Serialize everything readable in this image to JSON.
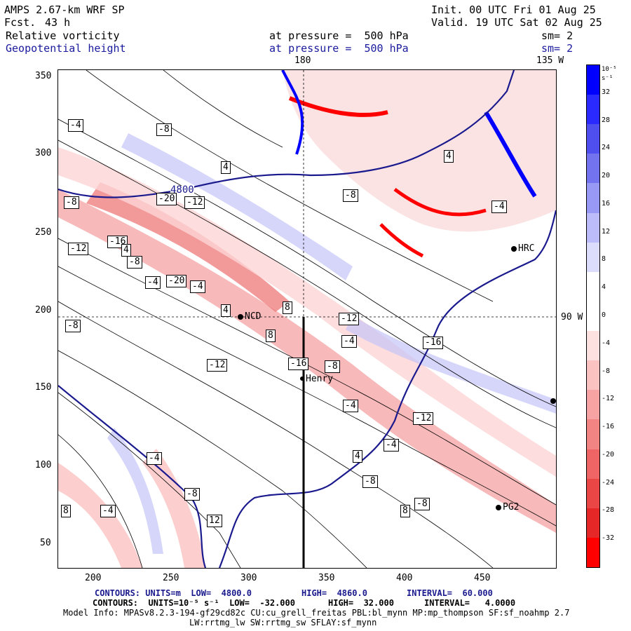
{
  "header": {
    "model": "AMPS 2.67-km WRF SP",
    "fcst_label": "Fcst.",
    "fcst_value": "43 h",
    "init": "Init. 00 UTC Fri 01 Aug 25",
    "valid": "Valid. 19 UTC Sat 02 Aug 25",
    "field1": "Relative vorticity",
    "field2": "Geopotential height",
    "level1": "at pressure =  500 hPa",
    "level2": "at pressure =  500 hPa",
    "sm1": "sm= 2",
    "sm2": "sm= 2"
  },
  "axes": {
    "x_ticks": [
      "200",
      "250",
      "300",
      "350",
      "400",
      "450"
    ],
    "y_ticks": [
      "350",
      "300",
      "250",
      "200",
      "150",
      "100",
      "50"
    ],
    "top_labels": [
      "180",
      "135 W"
    ],
    "right_label": "90 W"
  },
  "colorbar": {
    "unit": "10⁻⁵ s⁻¹",
    "ticks": [
      "32",
      "28",
      "24",
      "20",
      "16",
      "12",
      "8",
      "4",
      "0",
      "-4",
      "-8",
      "-12",
      "-16",
      "-20",
      "-24",
      "-28",
      "-32"
    ],
    "colors": [
      "#0000ff",
      "#2a2aff",
      "#4f4ff0",
      "#7373f0",
      "#9898f5",
      "#bcbcfa",
      "#dcdcfc",
      "#ffffff",
      "#ffffff",
      "#fde0e0",
      "#fbc2c2",
      "#f7a3a3",
      "#f38484",
      "#ef6565",
      "#ea4646",
      "#e52727",
      "#ff0000"
    ]
  },
  "stations": [
    "NCD",
    "Henry",
    "HRC",
    "PG2"
  ],
  "contour_labels": {
    "height": "4800",
    "vort": [
      "-4",
      "-8",
      "4",
      "-8",
      "4",
      "-4",
      "-8",
      "-20",
      "-12",
      "-16",
      "-12",
      "-8",
      "-20",
      "-4",
      "4",
      "8",
      "-16",
      "-12",
      "-8",
      "-4",
      "-12",
      "-16",
      "-12",
      "8",
      "-8",
      "4",
      "-4",
      "-4",
      "-8",
      "-4",
      "8",
      "12",
      "-8",
      "8",
      "-4",
      "-4",
      "-8",
      "4"
    ]
  },
  "footer": {
    "line1_a": "CONTOURS: UNITS=m  LOW=  4800.0",
    "line1_b": "HIGH=  4860.0",
    "line1_c": "INTERVAL=  60.000",
    "line2_a": "CONTOURS:  UNITS=10⁻⁵ s⁻¹  LOW=  -32.000",
    "line2_b": "HIGH=  32.000",
    "line2_c": "INTERVAL=   4.0000",
    "model_info": "Model Info: MPASv8.2.3-194-gf29cd82c CU:cu_grell_freitas PBL:bl_mynn MP:mp_thompson SF:sf_noahmp 2.7",
    "model_info2": "LW:rrtmg_lw SW:rrtmg_sw SFLAY:sf_mynn"
  }
}
